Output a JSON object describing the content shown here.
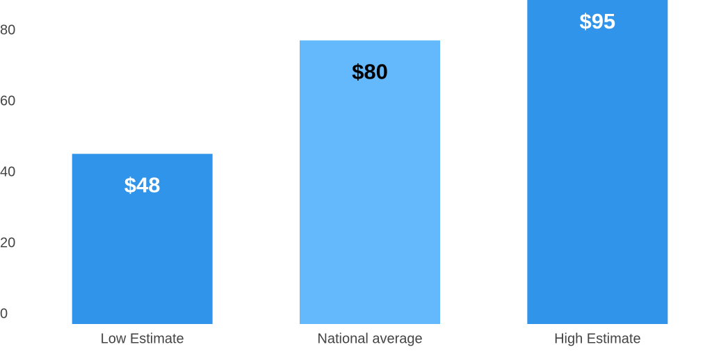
{
  "chart_data": {
    "type": "bar",
    "categories": [
      "Low Estimate",
      "National average",
      "High Estimate"
    ],
    "values": [
      48,
      80,
      95
    ],
    "value_labels": [
      "$48",
      "$80",
      "$95"
    ],
    "colors": [
      "#2f94ea",
      "#63b9fb",
      "#2f94ea"
    ],
    "label_colors": [
      "#ffffff",
      "#000000",
      "#ffffff"
    ],
    "ylim": [
      0,
      91.4
    ],
    "yticks": [
      0,
      20,
      40,
      60,
      80
    ],
    "grid": false
  }
}
